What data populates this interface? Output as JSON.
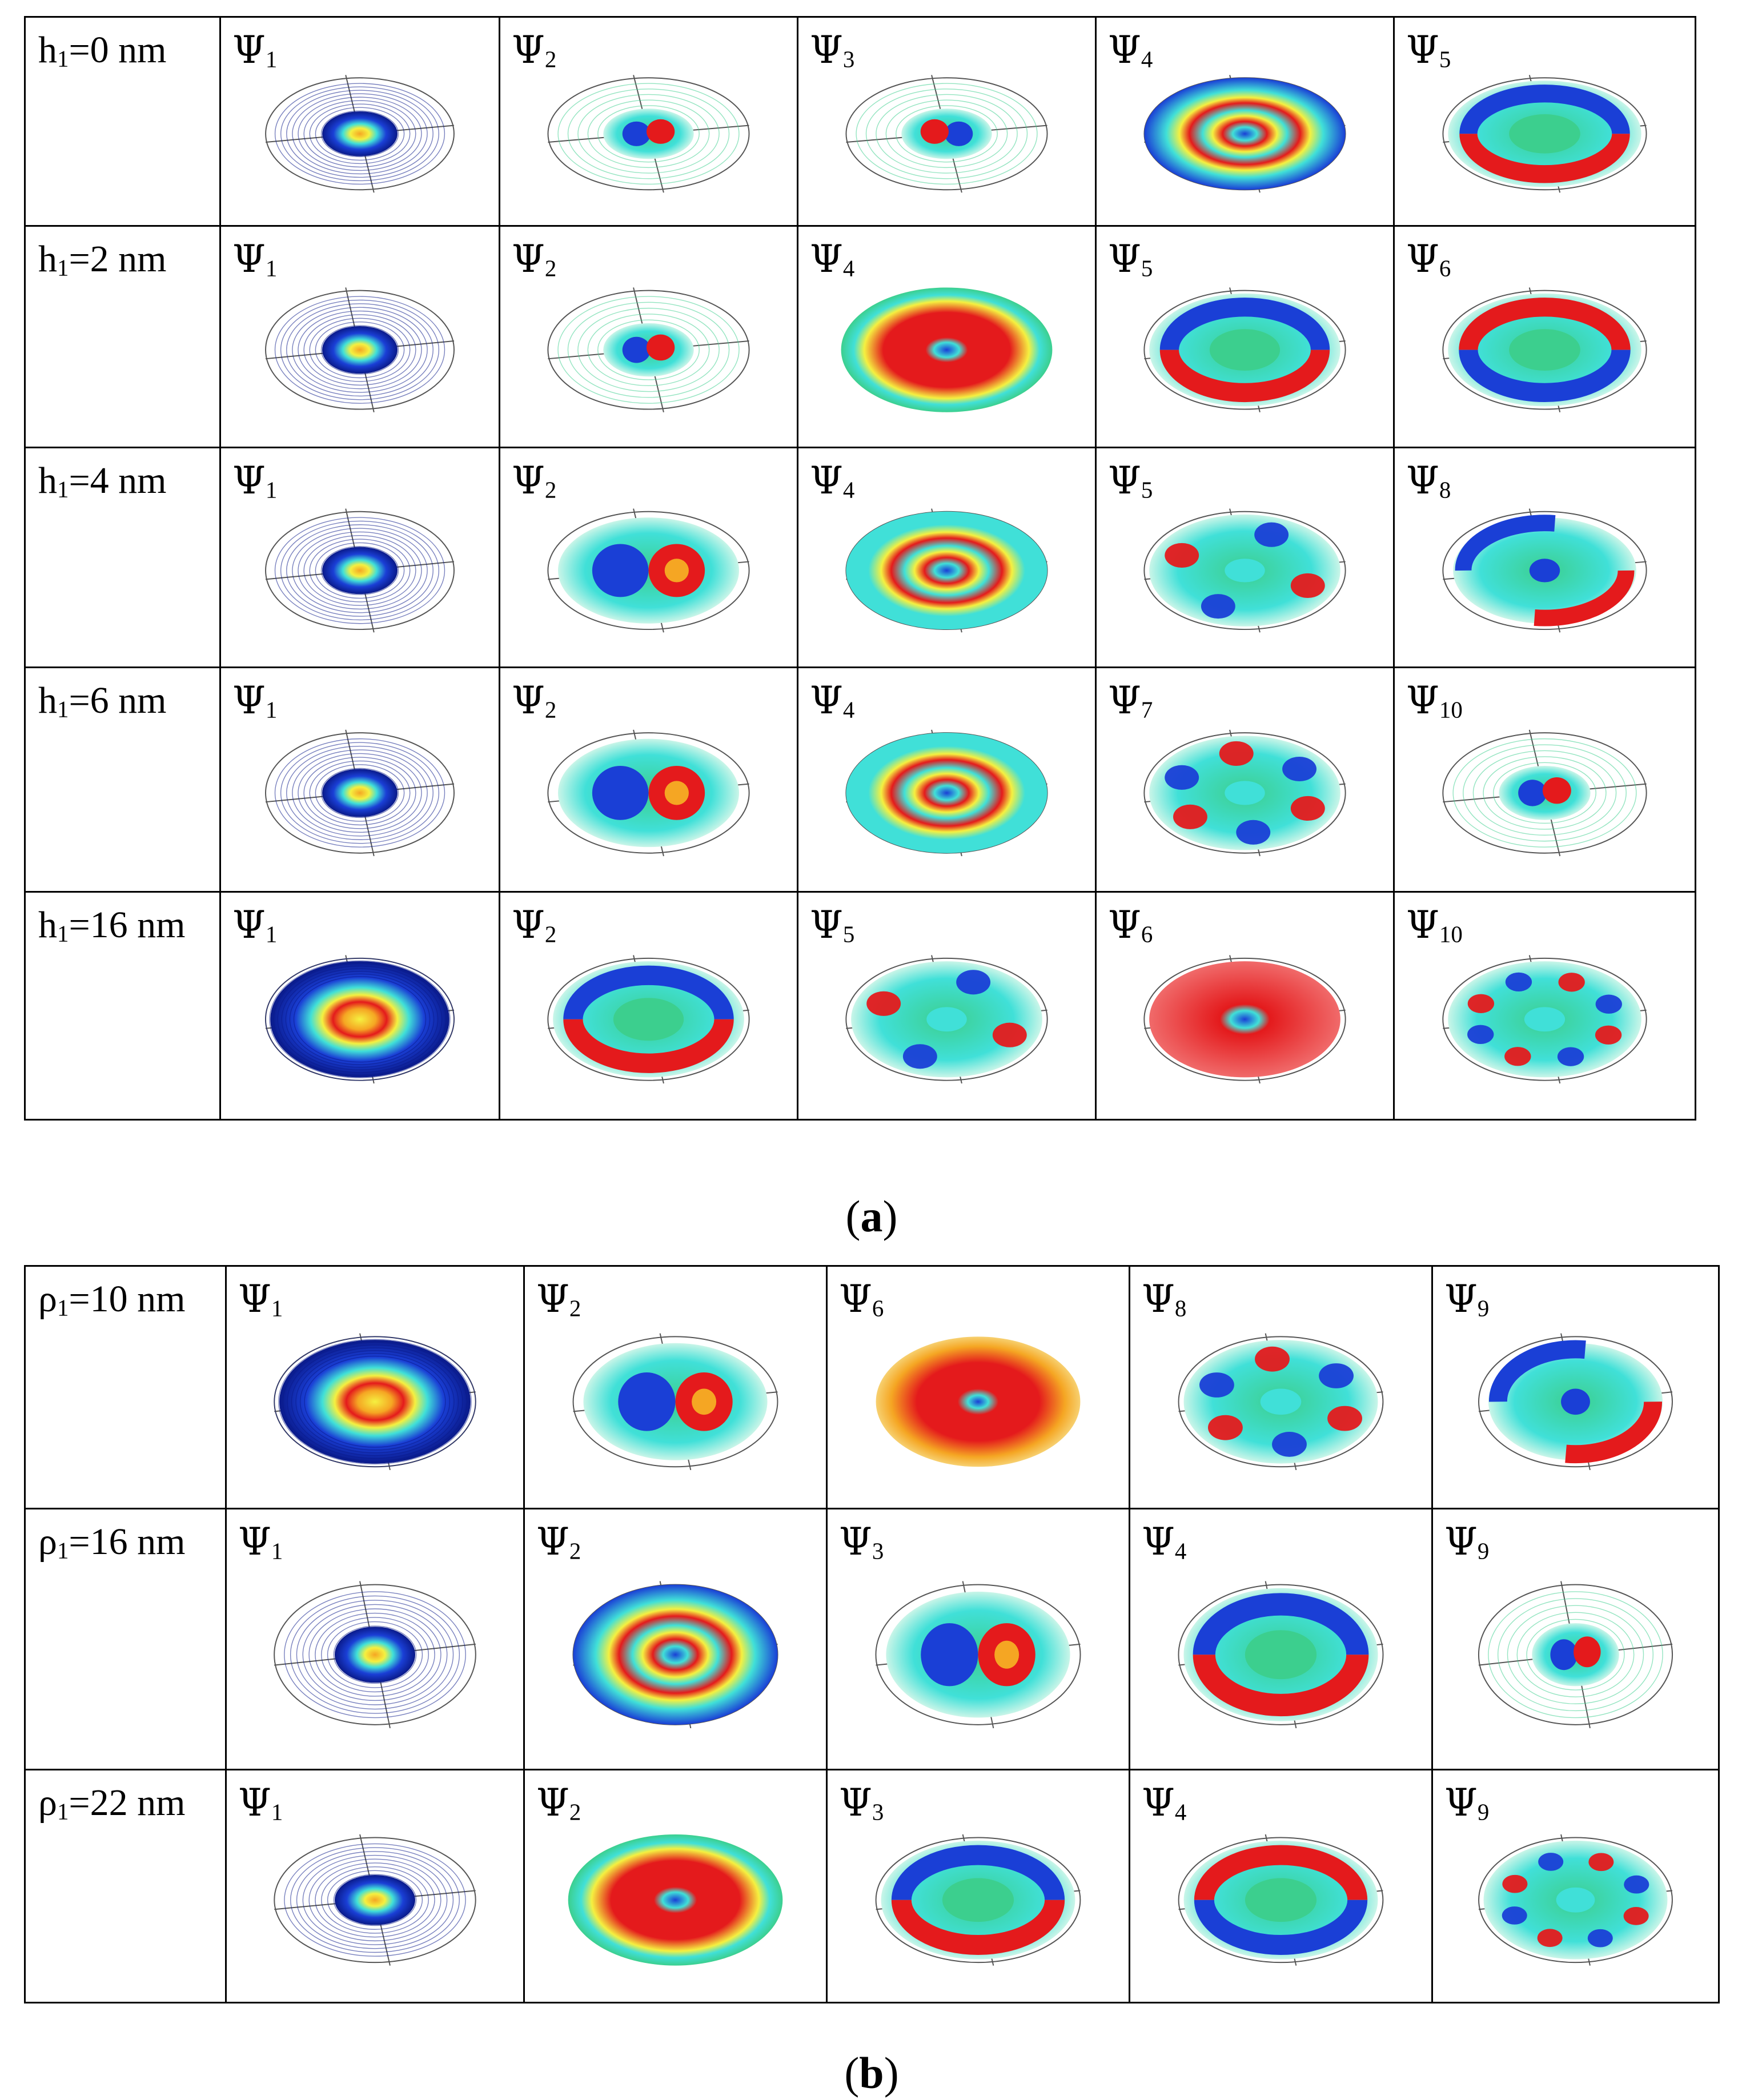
{
  "panel_a": {
    "caption_letter": "a",
    "rows": [
      {
        "var": "h",
        "sub": "1",
        "value": "=0 nm",
        "cells": [
          {
            "n": "1",
            "style": "core-blue"
          },
          {
            "n": "2",
            "style": "dipole-light"
          },
          {
            "n": "3",
            "style": "dipole-light-r"
          },
          {
            "n": "4",
            "style": "ring-bullseye"
          },
          {
            "n": "5",
            "style": "lobe2-ring"
          }
        ]
      },
      {
        "var": "h",
        "sub": "1",
        "value": "=2 nm",
        "cells": [
          {
            "n": "1",
            "style": "core-blue"
          },
          {
            "n": "2",
            "style": "dipole-light"
          },
          {
            "n": "4",
            "style": "ring-red"
          },
          {
            "n": "5",
            "style": "lobe2-ring"
          },
          {
            "n": "6",
            "style": "lobe2-ring-r"
          }
        ]
      },
      {
        "var": "h",
        "sub": "1",
        "value": "=4 nm",
        "cells": [
          {
            "n": "1",
            "style": "core-blue"
          },
          {
            "n": "2",
            "style": "dipole-full"
          },
          {
            "n": "4",
            "style": "ring-bullseye-light"
          },
          {
            "n": "5",
            "style": "lobe4-ring"
          },
          {
            "n": "8",
            "style": "dipole-ring"
          }
        ]
      },
      {
        "var": "h",
        "sub": "1",
        "value": "=6 nm",
        "cells": [
          {
            "n": "1",
            "style": "core-blue"
          },
          {
            "n": "2",
            "style": "dipole-full"
          },
          {
            "n": "4",
            "style": "ring-bullseye-light"
          },
          {
            "n": "7",
            "style": "lobe6-ring"
          },
          {
            "n": "10",
            "style": "dipole-light"
          }
        ]
      },
      {
        "var": "h",
        "sub": "1",
        "value": "=16 nm",
        "cells": [
          {
            "n": "1",
            "style": "torus-blue"
          },
          {
            "n": "2",
            "style": "lobe2-ring"
          },
          {
            "n": "5",
            "style": "lobe4-ring"
          },
          {
            "n": "6",
            "style": "ring-red-solid"
          },
          {
            "n": "10",
            "style": "lobe8-ring"
          }
        ]
      }
    ]
  },
  "panel_b": {
    "caption_letter": "b",
    "rows": [
      {
        "var": "ρ",
        "sub": "1",
        "value": "=10 nm",
        "cells": [
          {
            "n": "1",
            "style": "torus-blue"
          },
          {
            "n": "2",
            "style": "dipole-full"
          },
          {
            "n": "6",
            "style": "ring-orange"
          },
          {
            "n": "8",
            "style": "lobe6-ring"
          },
          {
            "n": "9",
            "style": "dipole-ring"
          }
        ]
      },
      {
        "var": "ρ",
        "sub": "1",
        "value": "=16 nm",
        "cells": [
          {
            "n": "1",
            "style": "core-blue"
          },
          {
            "n": "2",
            "style": "ring-bullseye"
          },
          {
            "n": "3",
            "style": "dipole-full"
          },
          {
            "n": "4",
            "style": "lobe2-ring"
          },
          {
            "n": "9",
            "style": "dipole-light"
          }
        ]
      },
      {
        "var": "ρ",
        "sub": "1",
        "value": "=22 nm",
        "cells": [
          {
            "n": "1",
            "style": "core-blue"
          },
          {
            "n": "2",
            "style": "ring-red"
          },
          {
            "n": "3",
            "style": "lobe2-ring"
          },
          {
            "n": "4",
            "style": "lobe2-ring-r"
          },
          {
            "n": "9",
            "style": "lobe8-ring"
          }
        ]
      }
    ]
  },
  "psi_symbol": "Ψ",
  "colors": {
    "red": "#e41a1c",
    "orange": "#f5a623",
    "yellow": "#f5f040",
    "green": "#3ccf8e",
    "cyan": "#40e0d8",
    "blue": "#1a3fd6",
    "navy": "#0a1a8a"
  }
}
